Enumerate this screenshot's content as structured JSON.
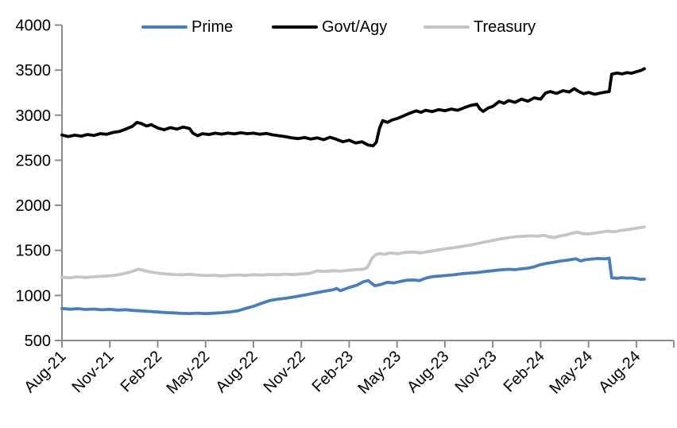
{
  "chart_data": {
    "type": "line",
    "title": "",
    "xlabel": "",
    "ylabel": "",
    "x_unit": "months since Aug-2021",
    "x_tick_labels": [
      "Aug-21",
      "Nov-21",
      "Feb-22",
      "May-22",
      "Aug-22",
      "Nov-22",
      "Feb-23",
      "May-23",
      "Aug-23",
      "Nov-23",
      "Feb-24",
      "May-24",
      "Aug-24"
    ],
    "x_tick_months": [
      0,
      3,
      6,
      9,
      12,
      15,
      18,
      21,
      24,
      27,
      30,
      33,
      36
    ],
    "x_range_months": [
      0,
      36.5
    ],
    "y_ticks": [
      "500",
      "1000",
      "1500",
      "2000",
      "2500",
      "3000",
      "3500",
      "4000"
    ],
    "y_tick_values": [
      500,
      1000,
      1500,
      2000,
      2500,
      3000,
      3500,
      4000
    ],
    "ylim": [
      500,
      4000
    ],
    "grid": "off",
    "legend_position": "top",
    "axis_color": "#8c8c8c",
    "text_color": "#000000",
    "series": [
      {
        "name": "Prime",
        "color": "#4a7ebb",
        "points": [
          [
            0,
            855
          ],
          [
            0.5,
            847
          ],
          [
            1,
            853
          ],
          [
            1.5,
            844
          ],
          [
            2,
            849
          ],
          [
            2.5,
            841
          ],
          [
            3,
            846
          ],
          [
            3.5,
            837
          ],
          [
            4,
            842
          ],
          [
            4.5,
            833
          ],
          [
            5,
            828
          ],
          [
            5.5,
            822
          ],
          [
            6,
            816
          ],
          [
            6.5,
            810
          ],
          [
            7,
            806
          ],
          [
            7.5,
            801
          ],
          [
            8,
            799
          ],
          [
            8.5,
            804
          ],
          [
            9,
            798
          ],
          [
            9.5,
            803
          ],
          [
            10,
            808
          ],
          [
            10.5,
            816
          ],
          [
            11,
            828
          ],
          [
            11.5,
            855
          ],
          [
            12,
            880
          ],
          [
            12.5,
            912
          ],
          [
            13,
            942
          ],
          [
            13.5,
            958
          ],
          [
            14,
            968
          ],
          [
            14.5,
            982
          ],
          [
            15,
            998
          ],
          [
            15.5,
            1015
          ],
          [
            16,
            1032
          ],
          [
            16.5,
            1048
          ],
          [
            17,
            1062
          ],
          [
            17.2,
            1078
          ],
          [
            17.45,
            1052
          ],
          [
            18,
            1088
          ],
          [
            18.5,
            1115
          ],
          [
            18.9,
            1152
          ],
          [
            19.2,
            1165
          ],
          [
            19.6,
            1108
          ],
          [
            20,
            1122
          ],
          [
            20.4,
            1146
          ],
          [
            20.8,
            1138
          ],
          [
            21.2,
            1155
          ],
          [
            21.6,
            1168
          ],
          [
            22,
            1172
          ],
          [
            22.4,
            1165
          ],
          [
            22.8,
            1192
          ],
          [
            23.2,
            1208
          ],
          [
            23.6,
            1214
          ],
          [
            24,
            1220
          ],
          [
            24.5,
            1228
          ],
          [
            25,
            1240
          ],
          [
            25.5,
            1247
          ],
          [
            26,
            1254
          ],
          [
            26.5,
            1264
          ],
          [
            27,
            1274
          ],
          [
            27.5,
            1284
          ],
          [
            28,
            1290
          ],
          [
            28.4,
            1286
          ],
          [
            28.8,
            1295
          ],
          [
            29.2,
            1302
          ],
          [
            29.6,
            1318
          ],
          [
            30,
            1342
          ],
          [
            30.4,
            1356
          ],
          [
            30.8,
            1368
          ],
          [
            31.2,
            1380
          ],
          [
            31.6,
            1390
          ],
          [
            32,
            1400
          ],
          [
            32.2,
            1407
          ],
          [
            32.5,
            1383
          ],
          [
            32.8,
            1396
          ],
          [
            33.2,
            1404
          ],
          [
            33.6,
            1410
          ],
          [
            34,
            1406
          ],
          [
            34.3,
            1413
          ],
          [
            34.45,
            1196
          ],
          [
            34.8,
            1190
          ],
          [
            35.1,
            1197
          ],
          [
            35.4,
            1192
          ],
          [
            35.7,
            1194
          ],
          [
            36,
            1186
          ],
          [
            36.3,
            1178
          ],
          [
            36.5,
            1181
          ]
        ]
      },
      {
        "name": "Govt/Agy",
        "color": "#000000",
        "points": [
          [
            0,
            2780
          ],
          [
            0.4,
            2762
          ],
          [
            0.8,
            2778
          ],
          [
            1.2,
            2768
          ],
          [
            1.6,
            2785
          ],
          [
            2,
            2775
          ],
          [
            2.4,
            2795
          ],
          [
            2.8,
            2788
          ],
          [
            3.2,
            2808
          ],
          [
            3.6,
            2820
          ],
          [
            4,
            2845
          ],
          [
            4.4,
            2875
          ],
          [
            4.7,
            2920
          ],
          [
            5,
            2905
          ],
          [
            5.3,
            2880
          ],
          [
            5.6,
            2895
          ],
          [
            6,
            2858
          ],
          [
            6.4,
            2838
          ],
          [
            6.8,
            2862
          ],
          [
            7.2,
            2845
          ],
          [
            7.6,
            2868
          ],
          [
            8,
            2852
          ],
          [
            8.2,
            2800
          ],
          [
            8.5,
            2772
          ],
          [
            8.8,
            2795
          ],
          [
            9.2,
            2785
          ],
          [
            9.6,
            2800
          ],
          [
            10,
            2790
          ],
          [
            10.4,
            2802
          ],
          [
            10.8,
            2792
          ],
          [
            11.2,
            2805
          ],
          [
            11.6,
            2795
          ],
          [
            12,
            2800
          ],
          [
            12.4,
            2788
          ],
          [
            12.8,
            2798
          ],
          [
            13.2,
            2782
          ],
          [
            13.6,
            2772
          ],
          [
            14,
            2762
          ],
          [
            14.4,
            2748
          ],
          [
            14.8,
            2740
          ],
          [
            15.2,
            2752
          ],
          [
            15.6,
            2735
          ],
          [
            16,
            2748
          ],
          [
            16.4,
            2728
          ],
          [
            16.8,
            2755
          ],
          [
            17.2,
            2732
          ],
          [
            17.6,
            2705
          ],
          [
            18,
            2722
          ],
          [
            18.4,
            2692
          ],
          [
            18.8,
            2705
          ],
          [
            19.2,
            2668
          ],
          [
            19.5,
            2660
          ],
          [
            19.7,
            2700
          ],
          [
            19.9,
            2855
          ],
          [
            20.1,
            2940
          ],
          [
            20.4,
            2920
          ],
          [
            20.7,
            2948
          ],
          [
            21,
            2962
          ],
          [
            21.4,
            2992
          ],
          [
            21.8,
            3022
          ],
          [
            22.2,
            3048
          ],
          [
            22.5,
            3032
          ],
          [
            22.8,
            3055
          ],
          [
            23.2,
            3040
          ],
          [
            23.6,
            3062
          ],
          [
            24,
            3050
          ],
          [
            24.4,
            3068
          ],
          [
            24.8,
            3055
          ],
          [
            25.2,
            3082
          ],
          [
            25.6,
            3108
          ],
          [
            26,
            3122
          ],
          [
            26.2,
            3068
          ],
          [
            26.4,
            3042
          ],
          [
            26.7,
            3078
          ],
          [
            27,
            3098
          ],
          [
            27.4,
            3152
          ],
          [
            27.7,
            3132
          ],
          [
            28,
            3162
          ],
          [
            28.4,
            3142
          ],
          [
            28.8,
            3178
          ],
          [
            29.2,
            3155
          ],
          [
            29.6,
            3192
          ],
          [
            30,
            3178
          ],
          [
            30.3,
            3245
          ],
          [
            30.6,
            3262
          ],
          [
            31,
            3242
          ],
          [
            31.4,
            3272
          ],
          [
            31.8,
            3258
          ],
          [
            32.1,
            3295
          ],
          [
            32.4,
            3262
          ],
          [
            32.7,
            3238
          ],
          [
            33,
            3252
          ],
          [
            33.4,
            3232
          ],
          [
            33.8,
            3248
          ],
          [
            34.1,
            3258
          ],
          [
            34.3,
            3262
          ],
          [
            34.45,
            3455
          ],
          [
            34.8,
            3468
          ],
          [
            35.1,
            3458
          ],
          [
            35.4,
            3472
          ],
          [
            35.7,
            3465
          ],
          [
            36,
            3482
          ],
          [
            36.3,
            3498
          ],
          [
            36.5,
            3515
          ]
        ]
      },
      {
        "name": "Treasury",
        "color": "#c5c5c5",
        "points": [
          [
            0,
            1202
          ],
          [
            0.5,
            1196
          ],
          [
            1,
            1206
          ],
          [
            1.5,
            1199
          ],
          [
            2,
            1207
          ],
          [
            2.5,
            1212
          ],
          [
            3,
            1218
          ],
          [
            3.5,
            1228
          ],
          [
            4,
            1248
          ],
          [
            4.4,
            1265
          ],
          [
            4.8,
            1292
          ],
          [
            5.1,
            1278
          ],
          [
            5.5,
            1262
          ],
          [
            6,
            1248
          ],
          [
            6.5,
            1238
          ],
          [
            7,
            1232
          ],
          [
            7.5,
            1229
          ],
          [
            8,
            1234
          ],
          [
            8.5,
            1226
          ],
          [
            9,
            1220
          ],
          [
            9.5,
            1224
          ],
          [
            10,
            1217
          ],
          [
            10.5,
            1222
          ],
          [
            11,
            1227
          ],
          [
            11.5,
            1223
          ],
          [
            12,
            1229
          ],
          [
            12.5,
            1226
          ],
          [
            13,
            1233
          ],
          [
            13.5,
            1229
          ],
          [
            14,
            1236
          ],
          [
            14.5,
            1231
          ],
          [
            15,
            1239
          ],
          [
            15.5,
            1244
          ],
          [
            16,
            1272
          ],
          [
            16.5,
            1266
          ],
          [
            17,
            1274
          ],
          [
            17.5,
            1269
          ],
          [
            18,
            1280
          ],
          [
            18.5,
            1287
          ],
          [
            18.9,
            1291
          ],
          [
            19.15,
            1312
          ],
          [
            19.4,
            1405
          ],
          [
            19.65,
            1452
          ],
          [
            19.9,
            1464
          ],
          [
            20.2,
            1455
          ],
          [
            20.6,
            1472
          ],
          [
            21,
            1462
          ],
          [
            21.5,
            1477
          ],
          [
            22,
            1482
          ],
          [
            22.5,
            1472
          ],
          [
            23,
            1488
          ],
          [
            23.5,
            1502
          ],
          [
            24,
            1518
          ],
          [
            24.5,
            1528
          ],
          [
            25,
            1542
          ],
          [
            25.5,
            1556
          ],
          [
            26,
            1574
          ],
          [
            26.5,
            1592
          ],
          [
            27,
            1610
          ],
          [
            27.5,
            1627
          ],
          [
            28,
            1642
          ],
          [
            28.5,
            1652
          ],
          [
            29,
            1657
          ],
          [
            29.4,
            1662
          ],
          [
            29.8,
            1656
          ],
          [
            30.2,
            1668
          ],
          [
            30.5,
            1652
          ],
          [
            30.8,
            1642
          ],
          [
            31.2,
            1658
          ],
          [
            31.6,
            1672
          ],
          [
            32,
            1692
          ],
          [
            32.3,
            1702
          ],
          [
            32.6,
            1686
          ],
          [
            33,
            1682
          ],
          [
            33.4,
            1692
          ],
          [
            33.8,
            1702
          ],
          [
            34.2,
            1714
          ],
          [
            34.6,
            1706
          ],
          [
            35,
            1719
          ],
          [
            35.4,
            1729
          ],
          [
            35.8,
            1740
          ],
          [
            36.2,
            1752
          ],
          [
            36.5,
            1760
          ]
        ]
      }
    ]
  }
}
